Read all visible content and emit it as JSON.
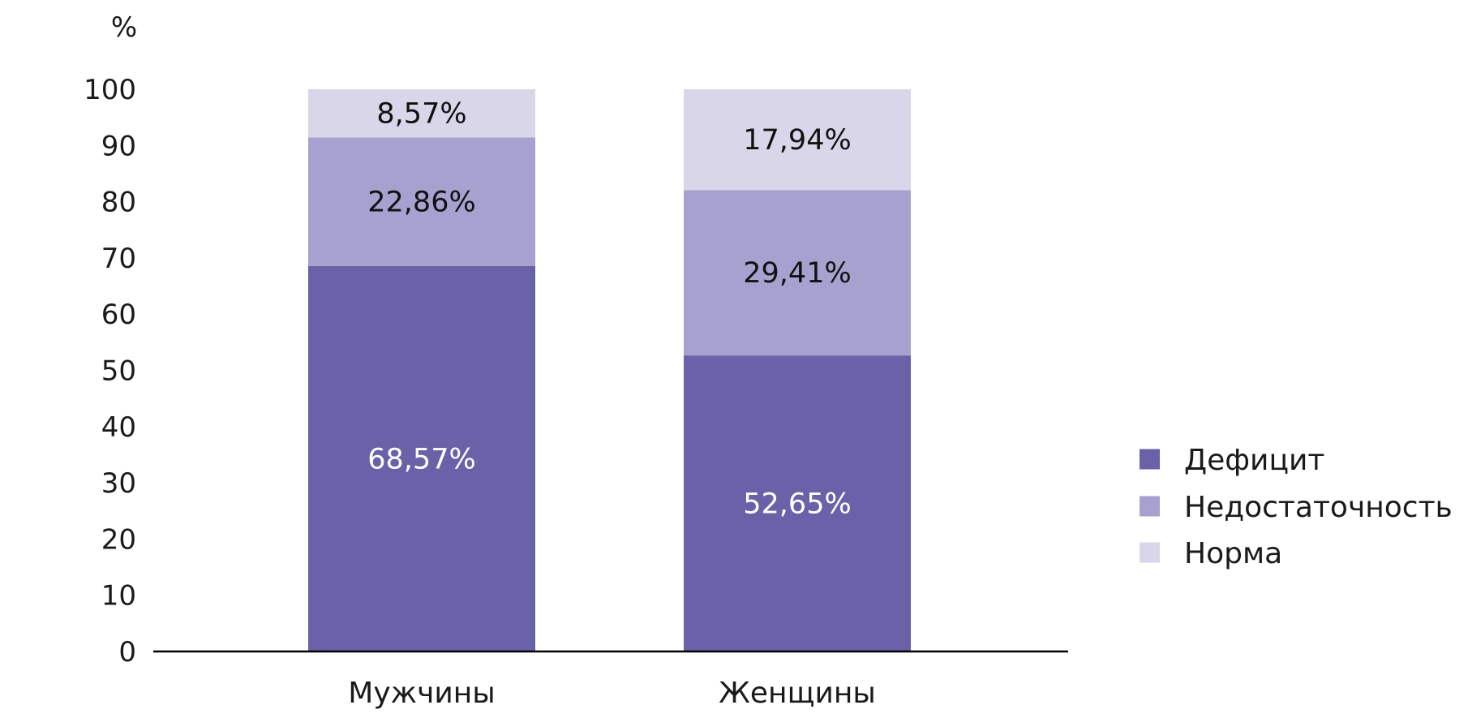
{
  "chart_data": {
    "type": "bar",
    "stacked": true,
    "title": "",
    "xlabel": "",
    "ylabel": "%",
    "ylim": [
      0,
      100
    ],
    "yticks": [
      0,
      10,
      20,
      30,
      40,
      50,
      60,
      70,
      80,
      90,
      100
    ],
    "grid": false,
    "legend_position": "right",
    "categories": [
      "Мужчины",
      "Женщины"
    ],
    "series": [
      {
        "name": "Дефицит",
        "color": "#6962a8",
        "values": [
          68.57,
          52.65
        ],
        "labels": [
          "68,57%",
          "52,65%"
        ],
        "label_color": "#ffffff"
      },
      {
        "name": "Недостаточность",
        "color": "#a7a1cf",
        "values": [
          22.86,
          29.41
        ],
        "labels": [
          "22,86%",
          "29,41%"
        ],
        "label_color": "#111111"
      },
      {
        "name": "Норма",
        "color": "#d9d6ea",
        "values": [
          8.57,
          17.94
        ],
        "labels": [
          "8,57%",
          "17,94%"
        ],
        "label_color": "#111111"
      }
    ]
  }
}
